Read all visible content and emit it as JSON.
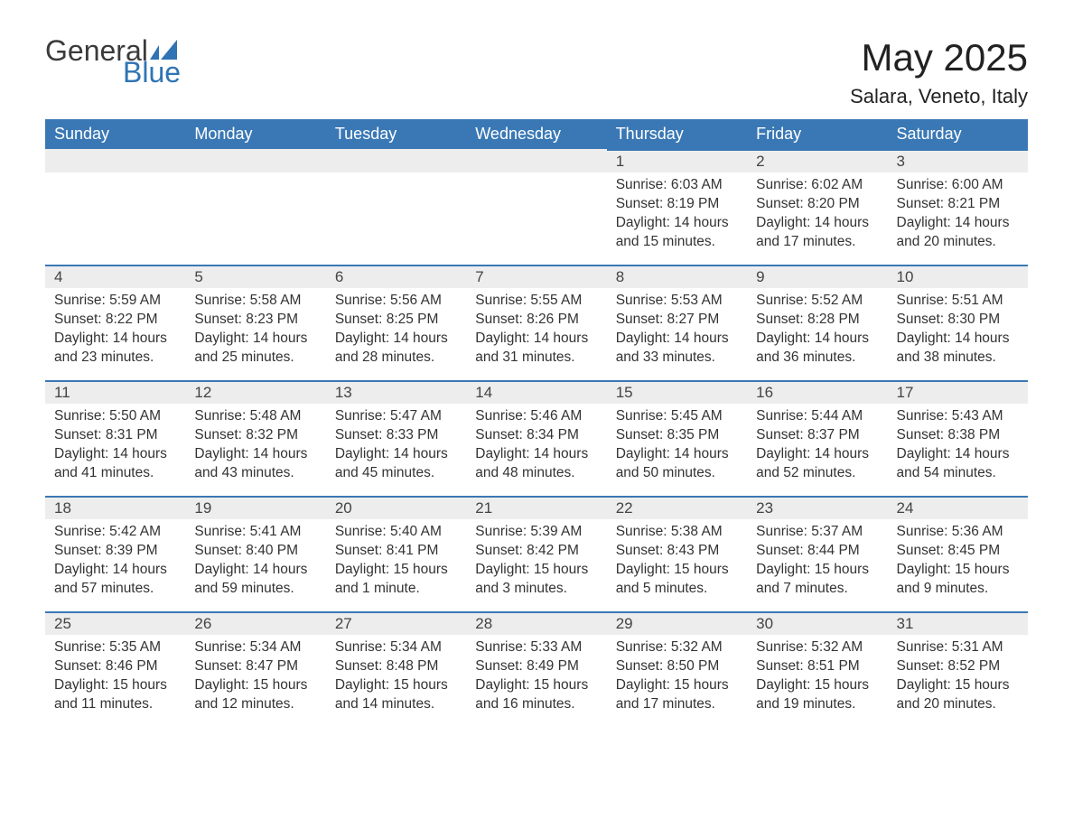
{
  "logo": {
    "word1": "General",
    "word2": "Blue",
    "mark_color": "#2f74b5"
  },
  "title": "May 2025",
  "location": "Salara, Veneto, Italy",
  "colors": {
    "header_bg": "#3a78b5",
    "header_fg": "#ffffff",
    "daynum_bg": "#ededed",
    "day_border": "#3a78b5",
    "text": "#333333"
  },
  "weekdays": [
    "Sunday",
    "Monday",
    "Tuesday",
    "Wednesday",
    "Thursday",
    "Friday",
    "Saturday"
  ],
  "leading_blanks": 4,
  "days": [
    {
      "n": 1,
      "sunrise": "6:03 AM",
      "sunset": "8:19 PM",
      "daylight": "14 hours and 15 minutes."
    },
    {
      "n": 2,
      "sunrise": "6:02 AM",
      "sunset": "8:20 PM",
      "daylight": "14 hours and 17 minutes."
    },
    {
      "n": 3,
      "sunrise": "6:00 AM",
      "sunset": "8:21 PM",
      "daylight": "14 hours and 20 minutes."
    },
    {
      "n": 4,
      "sunrise": "5:59 AM",
      "sunset": "8:22 PM",
      "daylight": "14 hours and 23 minutes."
    },
    {
      "n": 5,
      "sunrise": "5:58 AM",
      "sunset": "8:23 PM",
      "daylight": "14 hours and 25 minutes."
    },
    {
      "n": 6,
      "sunrise": "5:56 AM",
      "sunset": "8:25 PM",
      "daylight": "14 hours and 28 minutes."
    },
    {
      "n": 7,
      "sunrise": "5:55 AM",
      "sunset": "8:26 PM",
      "daylight": "14 hours and 31 minutes."
    },
    {
      "n": 8,
      "sunrise": "5:53 AM",
      "sunset": "8:27 PM",
      "daylight": "14 hours and 33 minutes."
    },
    {
      "n": 9,
      "sunrise": "5:52 AM",
      "sunset": "8:28 PM",
      "daylight": "14 hours and 36 minutes."
    },
    {
      "n": 10,
      "sunrise": "5:51 AM",
      "sunset": "8:30 PM",
      "daylight": "14 hours and 38 minutes."
    },
    {
      "n": 11,
      "sunrise": "5:50 AM",
      "sunset": "8:31 PM",
      "daylight": "14 hours and 41 minutes."
    },
    {
      "n": 12,
      "sunrise": "5:48 AM",
      "sunset": "8:32 PM",
      "daylight": "14 hours and 43 minutes."
    },
    {
      "n": 13,
      "sunrise": "5:47 AM",
      "sunset": "8:33 PM",
      "daylight": "14 hours and 45 minutes."
    },
    {
      "n": 14,
      "sunrise": "5:46 AM",
      "sunset": "8:34 PM",
      "daylight": "14 hours and 48 minutes."
    },
    {
      "n": 15,
      "sunrise": "5:45 AM",
      "sunset": "8:35 PM",
      "daylight": "14 hours and 50 minutes."
    },
    {
      "n": 16,
      "sunrise": "5:44 AM",
      "sunset": "8:37 PM",
      "daylight": "14 hours and 52 minutes."
    },
    {
      "n": 17,
      "sunrise": "5:43 AM",
      "sunset": "8:38 PM",
      "daylight": "14 hours and 54 minutes."
    },
    {
      "n": 18,
      "sunrise": "5:42 AM",
      "sunset": "8:39 PM",
      "daylight": "14 hours and 57 minutes."
    },
    {
      "n": 19,
      "sunrise": "5:41 AM",
      "sunset": "8:40 PM",
      "daylight": "14 hours and 59 minutes."
    },
    {
      "n": 20,
      "sunrise": "5:40 AM",
      "sunset": "8:41 PM",
      "daylight": "15 hours and 1 minute."
    },
    {
      "n": 21,
      "sunrise": "5:39 AM",
      "sunset": "8:42 PM",
      "daylight": "15 hours and 3 minutes."
    },
    {
      "n": 22,
      "sunrise": "5:38 AM",
      "sunset": "8:43 PM",
      "daylight": "15 hours and 5 minutes."
    },
    {
      "n": 23,
      "sunrise": "5:37 AM",
      "sunset": "8:44 PM",
      "daylight": "15 hours and 7 minutes."
    },
    {
      "n": 24,
      "sunrise": "5:36 AM",
      "sunset": "8:45 PM",
      "daylight": "15 hours and 9 minutes."
    },
    {
      "n": 25,
      "sunrise": "5:35 AM",
      "sunset": "8:46 PM",
      "daylight": "15 hours and 11 minutes."
    },
    {
      "n": 26,
      "sunrise": "5:34 AM",
      "sunset": "8:47 PM",
      "daylight": "15 hours and 12 minutes."
    },
    {
      "n": 27,
      "sunrise": "5:34 AM",
      "sunset": "8:48 PM",
      "daylight": "15 hours and 14 minutes."
    },
    {
      "n": 28,
      "sunrise": "5:33 AM",
      "sunset": "8:49 PM",
      "daylight": "15 hours and 16 minutes."
    },
    {
      "n": 29,
      "sunrise": "5:32 AM",
      "sunset": "8:50 PM",
      "daylight": "15 hours and 17 minutes."
    },
    {
      "n": 30,
      "sunrise": "5:32 AM",
      "sunset": "8:51 PM",
      "daylight": "15 hours and 19 minutes."
    },
    {
      "n": 31,
      "sunrise": "5:31 AM",
      "sunset": "8:52 PM",
      "daylight": "15 hours and 20 minutes."
    }
  ],
  "labels": {
    "sunrise": "Sunrise:",
    "sunset": "Sunset:",
    "daylight": "Daylight:"
  }
}
